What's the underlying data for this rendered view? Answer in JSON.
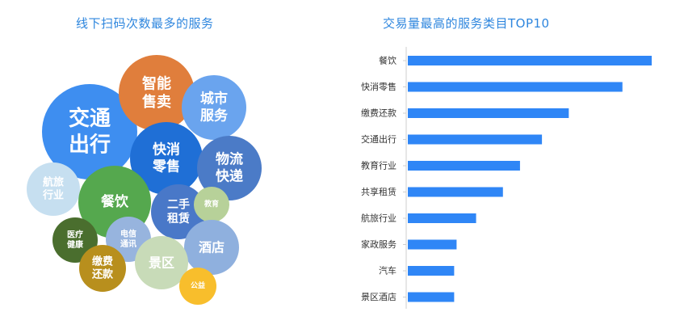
{
  "left_title": "线下扫码次数最多的服务",
  "right_title": "交易量最高的服务类目TOP10",
  "colors": {
    "title": "#2e86de",
    "bar": "#2f86f6"
  },
  "chart_data": [
    {
      "type": "bubble",
      "title": "线下扫码次数最多的服务",
      "bubbles": [
        {
          "label": [
            "交通",
            "出行"
          ],
          "color": "#3e8ef0"
        },
        {
          "label": [
            "智能",
            "售卖"
          ],
          "color": "#e07e3c"
        },
        {
          "label": [
            "城市",
            "服务"
          ],
          "color": "#6aa4ee"
        },
        {
          "label": [
            "快消",
            "零售"
          ],
          "color": "#1f6fd6"
        },
        {
          "label": [
            "物流",
            "快递"
          ],
          "color": "#4b7bc7"
        },
        {
          "label": [
            "航旅",
            "行业"
          ],
          "color": "#c6dff0"
        },
        {
          "label": [
            "餐饮"
          ],
          "color": "#55a84e"
        },
        {
          "label": [
            "二手",
            "租赁"
          ],
          "color": "#4978c8"
        },
        {
          "label": [
            "教育"
          ],
          "color": "#b7d199"
        },
        {
          "label": [
            "医疗",
            "健康"
          ],
          "color": "#4a6e2e"
        },
        {
          "label": [
            "电信",
            "通讯"
          ],
          "color": "#97b4de"
        },
        {
          "label": [
            "酒店"
          ],
          "color": "#8fb0de"
        },
        {
          "label": [
            "景区"
          ],
          "color": "#c8dbb8"
        },
        {
          "label": [
            "缴费",
            "还款"
          ],
          "color": "#b88f1d"
        },
        {
          "label": [
            "公益"
          ],
          "color": "#f8be2c"
        }
      ]
    },
    {
      "type": "bar",
      "orientation": "horizontal",
      "title": "交易量最高的服务类目TOP10",
      "categories": [
        "餐饮",
        "快消零售",
        "缴费还款",
        "交通出行",
        "教育行业",
        "共享租赁",
        "航旅行业",
        "家政服务",
        "汽车",
        "景区酒店"
      ],
      "values": [
        100,
        88,
        66,
        55,
        46,
        39,
        28,
        20,
        19,
        19
      ],
      "xlim": [
        0,
        100
      ],
      "grid": false
    }
  ]
}
